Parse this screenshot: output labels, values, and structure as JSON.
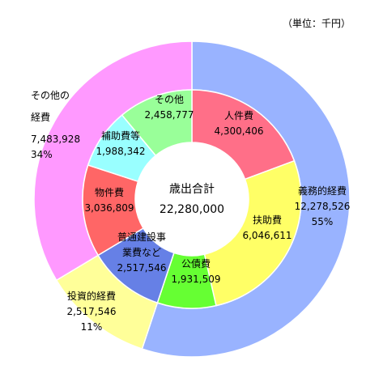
{
  "chart_data": {
    "type": "pie",
    "variant": "double-donut",
    "unit_note": "（単位：千円）",
    "center": {
      "label": "歳出合計",
      "value": "22,280,000"
    },
    "outer": [
      {
        "name": "義務的経費",
        "value": 12278526,
        "value_label": "12,278,526",
        "percent_label": "55%",
        "color": "#99B3FF"
      },
      {
        "name": "投資的経費",
        "value": 2517546,
        "value_label": "2,517,546",
        "percent_label": "11%",
        "color": "#FFFF99"
      },
      {
        "name": "その他の経費",
        "name_lines": [
          "その他の",
          "経費"
        ],
        "value": 7483928,
        "value_label": "7,483,928",
        "percent_label": "34%",
        "color": "#FF99FF"
      }
    ],
    "inner": [
      {
        "name": "人件費",
        "name_lines": [
          "人件費"
        ],
        "value": 4300406,
        "value_label": "4,300,406",
        "color": "#FF6F88"
      },
      {
        "name": "扶助費",
        "name_lines": [
          "扶助費"
        ],
        "value": 6046611,
        "value_label": "6,046,611",
        "color": "#FFFF66"
      },
      {
        "name": "公債費",
        "name_lines": [
          "公債費"
        ],
        "value": 1931509,
        "value_label": "1,931,509",
        "color": "#66FF33"
      },
      {
        "name": "普通建設事業費など",
        "name_lines": [
          "普通建設事",
          "業費など"
        ],
        "value": 2517546,
        "value_label": "2,517,546",
        "color": "#6680E6"
      },
      {
        "name": "物件費",
        "name_lines": [
          "物件費"
        ],
        "value": 3036809,
        "value_label": "3,036,809",
        "color": "#FF6666"
      },
      {
        "name": "補助費等",
        "name_lines": [
          "補助費等"
        ],
        "value": 1988342,
        "value_label": "1,988,342",
        "color": "#99FFFF"
      },
      {
        "name": "その他",
        "name_lines": [
          "その他"
        ],
        "value": 2458777,
        "value_label": "2,458,777",
        "color": "#99FF99"
      }
    ]
  }
}
